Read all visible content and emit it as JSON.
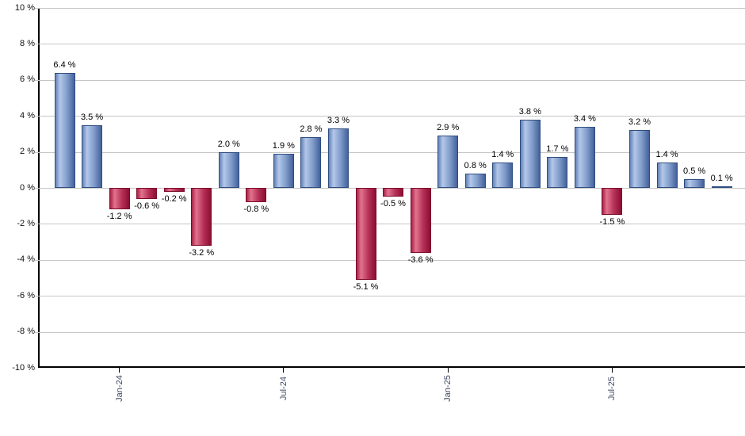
{
  "chart_data": {
    "type": "bar",
    "title": "",
    "xlabel": "",
    "ylabel": "",
    "ylim": [
      -10,
      10
    ],
    "ytick_step": 2,
    "grid": true,
    "legend_position": "none",
    "ytick_labels": [
      "10 %",
      "8 %",
      "6 %",
      "4 %",
      "2 %",
      "0 %",
      "-2 %",
      "-4 %",
      "-6 %",
      "-8 %",
      "-10 %"
    ],
    "values": [
      6.4,
      3.5,
      -1.2,
      -0.6,
      -0.2,
      -3.2,
      2.0,
      -0.8,
      1.9,
      2.8,
      3.3,
      -5.1,
      -0.5,
      -3.6,
      2.9,
      0.8,
      1.4,
      3.8,
      1.7,
      3.4,
      -1.5,
      3.2,
      1.4,
      0.5,
      0.1
    ],
    "value_labels": [
      "6.4 %",
      "3.5 %",
      "-1.2 %",
      "-0.6 %",
      "-0.2 %",
      "-3.2 %",
      "2.0 %",
      "-0.8 %",
      "1.9 %",
      "2.8 %",
      "3.3 %",
      "-5.1 %",
      "-0.5 %",
      "-3.6 %",
      "2.9 %",
      "0.8 %",
      "1.4 %",
      "3.8 %",
      "1.7 %",
      "3.4 %",
      "-1.5 %",
      "3.2 %",
      "1.4 %",
      "0.5 %",
      "0.1 %"
    ],
    "xticks": [
      {
        "index": 2,
        "label": "Jan-24"
      },
      {
        "index": 8,
        "label": "Jul-24"
      },
      {
        "index": 14,
        "label": "Jan-25"
      },
      {
        "index": 20,
        "label": "Jul-25"
      }
    ],
    "colors": {
      "positive_bar_gradient": [
        "#6283b8",
        "#b4c7e9",
        "#7f9bc9",
        "#44619b"
      ],
      "positive_bar_border": "#2f4d7f",
      "negative_bar_gradient": [
        "#aa2148",
        "#e2738d",
        "#b53057",
        "#8c0f32"
      ],
      "negative_bar_border": "#7c0c2c",
      "gridline": "#c6c6c6",
      "axis": "#000000",
      "ytick_label": "#111111",
      "xtick_label": "#3f4a63",
      "value_label": "#000000",
      "background": "#ffffff"
    }
  }
}
